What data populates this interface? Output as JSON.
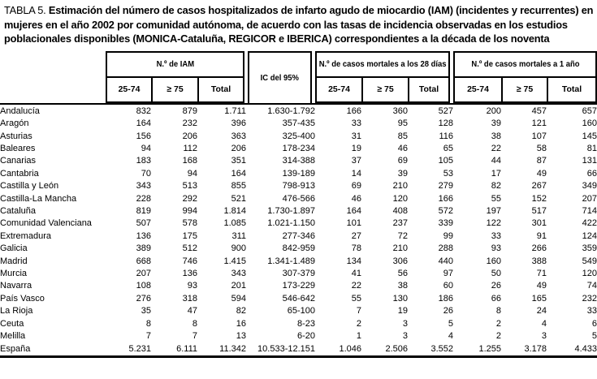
{
  "title": {
    "label": "TABLA 5.",
    "text": "Estimación del número de casos hospitalizados de infarto agudo de miocardio (IAM) (incidentes y recurrentes) en mujeres en el año 2002 por comunidad autónoma, de acuerdo con las tasas de incidencia observadas en los estudios poblacionales disponibles (MONICA-Cataluña, REGICOR e IBERICA) correspondientes a la década de los noventa"
  },
  "table": {
    "col_groups": [
      {
        "label": "N.º de IAM",
        "subcols": [
          "25-74",
          "≥ 75",
          "Total"
        ]
      },
      {
        "label": "IC del 95%"
      },
      {
        "label": "N.º de casos mortales a los 28 días",
        "subcols": [
          "25-74",
          "≥ 75",
          "Total"
        ]
      },
      {
        "label": "N.º de casos mortales a 1 año",
        "subcols": [
          "25-74",
          "≥ 75",
          "Total"
        ]
      }
    ],
    "rows": [
      {
        "region": "Andalucía",
        "values": [
          "832",
          "879",
          "1.711",
          "1.630-1.792",
          "166",
          "360",
          "527",
          "200",
          "457",
          "657"
        ]
      },
      {
        "region": "Aragón",
        "values": [
          "164",
          "232",
          "396",
          "357-435",
          "33",
          "95",
          "128",
          "39",
          "121",
          "160"
        ]
      },
      {
        "region": "Asturias",
        "values": [
          "156",
          "206",
          "363",
          "325-400",
          "31",
          "85",
          "116",
          "38",
          "107",
          "145"
        ]
      },
      {
        "region": "Baleares",
        "values": [
          "94",
          "112",
          "206",
          "178-234",
          "19",
          "46",
          "65",
          "22",
          "58",
          "81"
        ]
      },
      {
        "region": "Canarias",
        "values": [
          "183",
          "168",
          "351",
          "314-388",
          "37",
          "69",
          "105",
          "44",
          "87",
          "131"
        ]
      },
      {
        "region": "Cantabria",
        "values": [
          "70",
          "94",
          "164",
          "139-189",
          "14",
          "39",
          "53",
          "17",
          "49",
          "66"
        ]
      },
      {
        "region": "Castilla y León",
        "values": [
          "343",
          "513",
          "855",
          "798-913",
          "69",
          "210",
          "279",
          "82",
          "267",
          "349"
        ]
      },
      {
        "region": "Castilla-La Mancha",
        "values": [
          "228",
          "292",
          "521",
          "476-566",
          "46",
          "120",
          "166",
          "55",
          "152",
          "207"
        ]
      },
      {
        "region": "Cataluña",
        "values": [
          "819",
          "994",
          "1.814",
          "1.730-1.897",
          "164",
          "408",
          "572",
          "197",
          "517",
          "714"
        ]
      },
      {
        "region": "Comunidad Valenciana",
        "values": [
          "507",
          "578",
          "1.085",
          "1.021-1.150",
          "101",
          "237",
          "339",
          "122",
          "301",
          "422"
        ]
      },
      {
        "region": "Extremadura",
        "values": [
          "136",
          "175",
          "311",
          "277-346",
          "27",
          "72",
          "99",
          "33",
          "91",
          "124"
        ]
      },
      {
        "region": "Galicia",
        "values": [
          "389",
          "512",
          "900",
          "842-959",
          "78",
          "210",
          "288",
          "93",
          "266",
          "359"
        ]
      },
      {
        "region": "Madrid",
        "values": [
          "668",
          "746",
          "1.415",
          "1.341-1.489",
          "134",
          "306",
          "440",
          "160",
          "388",
          "549"
        ]
      },
      {
        "region": "Murcia",
        "values": [
          "207",
          "136",
          "343",
          "307-379",
          "41",
          "56",
          "97",
          "50",
          "71",
          "120"
        ]
      },
      {
        "region": "Navarra",
        "values": [
          "108",
          "93",
          "201",
          "173-229",
          "22",
          "38",
          "60",
          "26",
          "49",
          "74"
        ]
      },
      {
        "region": "País Vasco",
        "values": [
          "276",
          "318",
          "594",
          "546-642",
          "55",
          "130",
          "186",
          "66",
          "165",
          "232"
        ]
      },
      {
        "region": "La Rioja",
        "values": [
          "35",
          "47",
          "82",
          "65-100",
          "7",
          "19",
          "26",
          "8",
          "24",
          "33"
        ]
      },
      {
        "region": "Ceuta",
        "values": [
          "8",
          "8",
          "16",
          "8-23",
          "2",
          "3",
          "5",
          "2",
          "4",
          "6"
        ]
      },
      {
        "region": "Melilla",
        "values": [
          "7",
          "7",
          "13",
          "6-20",
          "1",
          "3",
          "4",
          "2",
          "3",
          "5"
        ]
      },
      {
        "region": "España",
        "values": [
          "5.231",
          "6.111",
          "11.342",
          "10.533-12.151",
          "1.046",
          "2.506",
          "3.552",
          "1.255",
          "3.178",
          "4.433"
        ]
      }
    ]
  }
}
